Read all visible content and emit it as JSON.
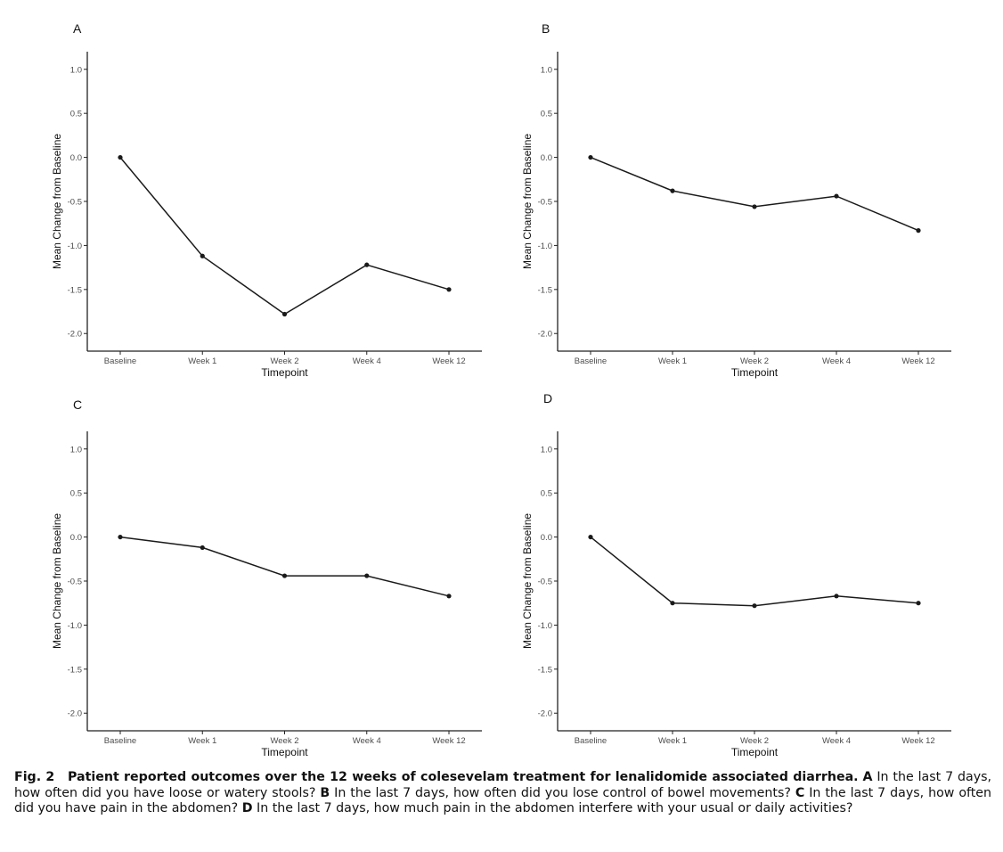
{
  "chart_data": [
    {
      "type": "line",
      "panel_label": "A",
      "xlabel": "Timepoint",
      "ylabel": "Mean Change from Baseline",
      "categories": [
        "Baseline",
        "Week 1",
        "Week 2",
        "Week 4",
        "Week 12"
      ],
      "values": [
        0.0,
        -1.12,
        -1.78,
        -1.22,
        -1.5
      ],
      "ylim": [
        -2.2,
        1.2
      ],
      "yticks": [
        "1.0",
        "0.5",
        "0.0",
        "-0.5",
        "-1.0",
        "-1.5",
        "-2.0"
      ],
      "grid": false
    },
    {
      "type": "line",
      "panel_label": "B",
      "xlabel": "Timepoint",
      "ylabel": "Mean Change from Baseline",
      "categories": [
        "Baseline",
        "Week 1",
        "Week 2",
        "Week 4",
        "Week 12"
      ],
      "values": [
        0.0,
        -0.38,
        -0.56,
        -0.44,
        -0.83
      ],
      "ylim": [
        -2.2,
        1.2
      ],
      "yticks": [
        "1.0",
        "0.5",
        "0.0",
        "-0.5",
        "-1.0",
        "-1.5",
        "-2.0"
      ],
      "grid": false
    },
    {
      "type": "line",
      "panel_label": "C",
      "xlabel": "Timepoint",
      "ylabel": "Mean Change from Baseline",
      "categories": [
        "Baseline",
        "Week 1",
        "Week 2",
        "Week 4",
        "Week 12"
      ],
      "values": [
        0.0,
        -0.12,
        -0.44,
        -0.44,
        -0.67
      ],
      "ylim": [
        -2.2,
        1.2
      ],
      "yticks": [
        "1.0",
        "0.5",
        "0.0",
        "-0.5",
        "-1.0",
        "-1.5",
        "-2.0"
      ],
      "grid": false
    },
    {
      "type": "line",
      "panel_label": "D",
      "xlabel": "Timepoint",
      "ylabel": "Mean Change from Baseline",
      "categories": [
        "Baseline",
        "Week 1",
        "Week 2",
        "Week 4",
        "Week 12"
      ],
      "values": [
        0.0,
        -0.75,
        -0.78,
        -0.67,
        -0.75
      ],
      "ylim": [
        -2.2,
        1.2
      ],
      "yticks": [
        "1.0",
        "0.5",
        "0.0",
        "-0.5",
        "-1.0",
        "-1.5",
        "-2.0"
      ],
      "grid": false
    }
  ],
  "caption": {
    "fig_label": "Fig. 2",
    "title": "Patient reported outcomes over the 12 weeks of colesevelam treatment for lenalidomide associated diarrhea.",
    "a_label": "A",
    "a_text": "In the last 7 days, how often did you have loose or watery stools?",
    "b_label": "B",
    "b_text": "In the last 7 days, how often did you lose control of bowel movements?",
    "c_label": "C",
    "c_text": "In the last 7 days, how often did you have pain in the abdomen?",
    "d_label": "D",
    "d_text": "In the last 7 days, how much pain in the abdomen interfere with your usual or daily activities?"
  },
  "colors": {
    "line": "#1a1a1a",
    "axis": "#222222",
    "tick_label": "#4d4d4d"
  }
}
